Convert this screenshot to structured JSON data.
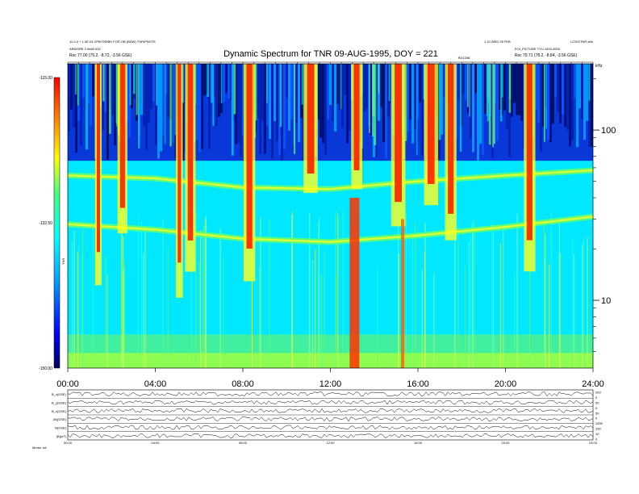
{
  "chart_data": {
    "type": "heatmap",
    "title": "Dynamic Spectrum for TNR 09-AUG-1995, DOY = 221",
    "header_left": [
      "11-0.0 + 1.0E-04 XPB/TNR8H FOR OB (BDW) TNR/PNOTE",
      "ARMGRE 2 ###0.032",
      "Rsc    77.00 (75.2, -8.72, -3.56 GSE)"
    ],
    "header_right": [
      "1.10 WED 25 FEB",
      "LOSS/TNR ###",
      "EOI_PICTURE TYU 1025-3000",
      "Rsc   79.71 (78.2, -8.84, -3.56 GSE)"
    ],
    "top_marker": "RD1208",
    "xlabel": "",
    "ylabel_right_unit": "kHz",
    "x_ticks": [
      "00:00",
      "04:00",
      "08:00",
      "12:00",
      "16:00",
      "20:00",
      "24:00"
    ],
    "xlim_hours": [
      0,
      24
    ],
    "y_scale": "log",
    "ylim_khz": [
      4,
      245
    ],
    "y_ticks": [
      {
        "label": "100",
        "value": 100
      },
      {
        "label": "10",
        "value": 10
      }
    ],
    "colorbar": {
      "label": "TNR",
      "ticks": [
        "-115.00",
        "-132.50",
        "-150.00"
      ],
      "range": [
        -150,
        -115
      ],
      "colors": [
        "#000080",
        "#0000ff",
        "#00b0ff",
        "#00ffff",
        "#40ff80",
        "#ffff00",
        "#ff8000",
        "#ff0000"
      ]
    },
    "emission_bands": [
      {
        "name": "",
        "freq_khz": [
          {
            "h": 0,
            "f": 54
          },
          {
            "h": 4,
            "f": 52
          },
          {
            "h": 8,
            "f": 46
          },
          {
            "h": 12,
            "f": 45
          },
          {
            "h": 16,
            "f": 50
          },
          {
            "h": 20,
            "f": 54
          },
          {
            "h": 24,
            "f": 58
          }
        ]
      },
      {
        "name": "",
        "freq_khz": [
          {
            "h": 0,
            "f": 28
          },
          {
            "h": 4,
            "f": 26
          },
          {
            "h": 8,
            "f": 23
          },
          {
            "h": 12,
            "f": 22
          },
          {
            "h": 16,
            "f": 24
          },
          {
            "h": 20,
            "f": 27
          },
          {
            "h": 24,
            "f": 31
          }
        ]
      }
    ],
    "bursts_hours": [
      1.4,
      2.5,
      5.1,
      5.6,
      8.3,
      11.1,
      13.2,
      15.1,
      16.6,
      17.5,
      21.1
    ]
  },
  "lower_panels": {
    "labels": [
      "B_x(GSE)",
      "B_y(GSE)",
      "B_z(GSE)",
      "|B|(GSE)",
      "N(GSE)",
      "|B|(nT)"
    ],
    "right_labels": [
      "200",
      "0",
      "50",
      "0",
      "50",
      "0",
      "1000",
      "100",
      "10",
      "0"
    ],
    "x_ticks": [
      "00:00",
      "04:00",
      "08:00",
      "12:00",
      "16:00",
      "20:00",
      "24:00"
    ],
    "footer": "Mmse: ##"
  }
}
